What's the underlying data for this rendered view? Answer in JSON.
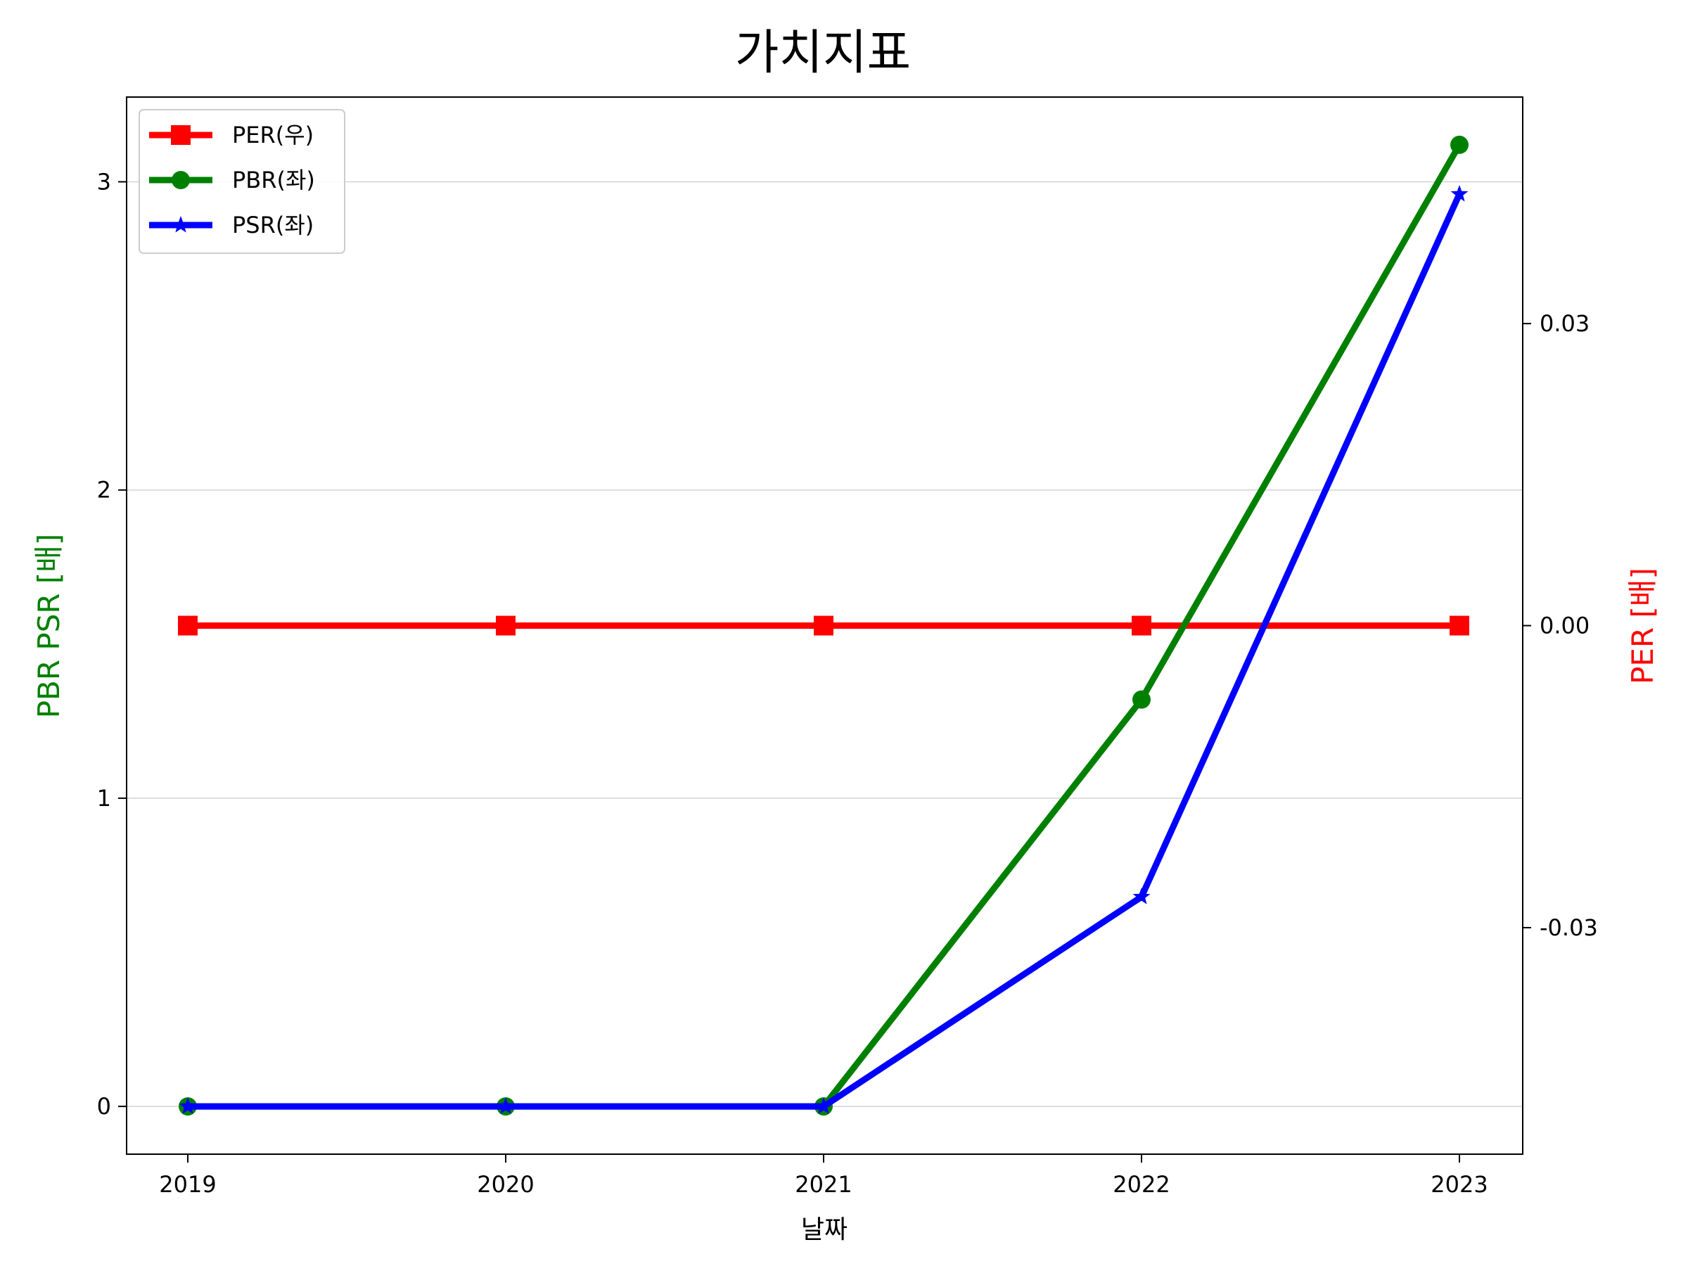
{
  "chart_data": {
    "type": "line",
    "title": "가치지표",
    "xlabel": "날짜",
    "ylabel_left": "PBR PSR [배]",
    "ylabel_right": "PER [배]",
    "x": [
      "2019",
      "2020",
      "2021",
      "2022",
      "2023"
    ],
    "ylim_left": [
      -0.155,
      3.275
    ],
    "ylim_right": [
      -0.0525,
      0.0525
    ],
    "yticks_left": [
      "0",
      "1",
      "2",
      "3"
    ],
    "yticks_right": [
      "-0.03",
      "0.00",
      "0.03"
    ],
    "grid": "horizontal",
    "legend_position": "top-left",
    "series": [
      {
        "name": "PER(우)",
        "axis": "right",
        "color": "#ff0000",
        "marker": "square",
        "values": [
          0,
          0,
          0,
          0,
          0
        ]
      },
      {
        "name": "PBR(좌)",
        "axis": "left",
        "color": "#008000",
        "marker": "circle",
        "values": [
          0,
          0,
          0,
          1.32,
          3.12
        ]
      },
      {
        "name": "PSR(좌)",
        "axis": "left",
        "color": "#0000ff",
        "marker": "star",
        "values": [
          0,
          0,
          0,
          0.68,
          2.96
        ]
      }
    ],
    "colors": {
      "ylabel_left": "#008000",
      "ylabel_right": "#ff0000"
    }
  }
}
